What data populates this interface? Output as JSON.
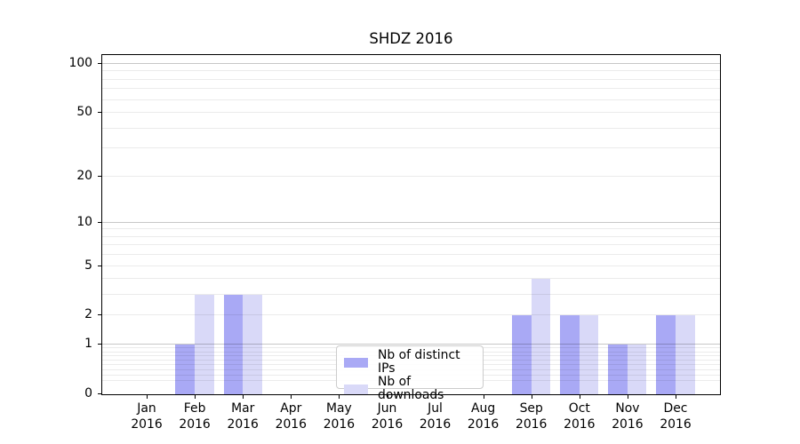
{
  "chart_data": {
    "type": "bar",
    "title": "SHDZ 2016",
    "categories": [
      "Jan 2016",
      "Feb 2016",
      "Mar 2016",
      "Apr 2016",
      "May 2016",
      "Jun 2016",
      "Jul 2016",
      "Aug 2016",
      "Sep 2016",
      "Oct 2016",
      "Nov 2016",
      "Dec 2016"
    ],
    "month_labels": [
      "Jan",
      "Feb",
      "Mar",
      "Apr",
      "May",
      "Jun",
      "Jul",
      "Aug",
      "Sep",
      "Oct",
      "Nov",
      "Dec"
    ],
    "year_label": "2016",
    "series": [
      {
        "key": "distinct-ips",
        "name": "Nb of distinct IPs",
        "color": "#a9a9f5",
        "values": [
          0,
          1,
          3,
          0,
          0,
          0,
          0,
          0,
          2,
          2,
          1,
          2
        ]
      },
      {
        "key": "downloads",
        "name": "Nb of downloads",
        "color": "#d9d9f8",
        "values": [
          0,
          3,
          3,
          0,
          0,
          0,
          0,
          0,
          4,
          2,
          1,
          2
        ]
      }
    ],
    "xlabel": "",
    "ylabel": "",
    "y_axis": {
      "scale": "log(1+y)",
      "tick_values": [
        0,
        1,
        2,
        5,
        10,
        20,
        50,
        100
      ],
      "tick_labels": [
        "0",
        "1",
        "2",
        "5",
        "10",
        "20",
        "50",
        "100"
      ],
      "ylim": [
        0,
        112
      ],
      "major_gridlines": [
        1,
        10,
        100
      ],
      "minor_gridlines": [
        0.2,
        0.3,
        0.4,
        0.5,
        0.6,
        0.7,
        0.8,
        0.9,
        2,
        3,
        4,
        5,
        6,
        7,
        8,
        9,
        20,
        30,
        40,
        50,
        60,
        70,
        80,
        90
      ]
    },
    "grid": true,
    "legend_position": "lower center",
    "colors": {
      "background": "#ffffff",
      "spine": "#000000",
      "text": "#000000",
      "grid_major": "rgba(0,0,0,0.22)",
      "grid_minor": "rgba(0,0,0,0.08)"
    }
  }
}
